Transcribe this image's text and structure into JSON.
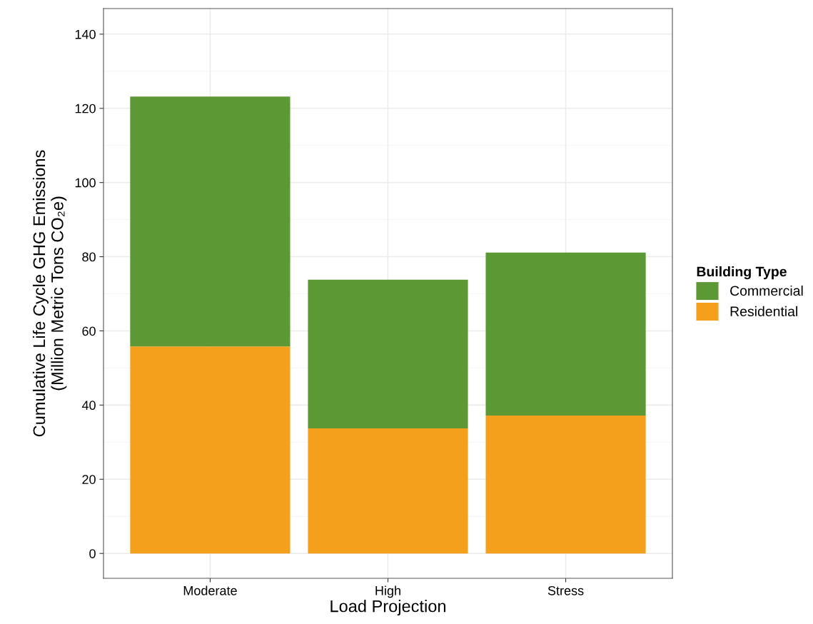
{
  "chart_data": {
    "type": "bar",
    "stacked": true,
    "xlabel": "Load Projection",
    "ylabel": "Cumulative Life Cycle GHG Emissions\n(Million Metric Tons CO₂e)",
    "legend_title": "Building Type",
    "categories": [
      "Moderate",
      "High",
      "Stress"
    ],
    "series": [
      {
        "name": "Residential",
        "color": "#f5a01d",
        "values": [
          55.8,
          33.7,
          37.2
        ]
      },
      {
        "name": "Commercial",
        "color": "#5c9834",
        "values": [
          67.4,
          40.1,
          43.9
        ]
      }
    ],
    "ylim": [
      -6.7,
      146.9
    ],
    "yticks": [
      0,
      20,
      40,
      60,
      80,
      100,
      120,
      140
    ],
    "grid": true,
    "legend": "right"
  }
}
